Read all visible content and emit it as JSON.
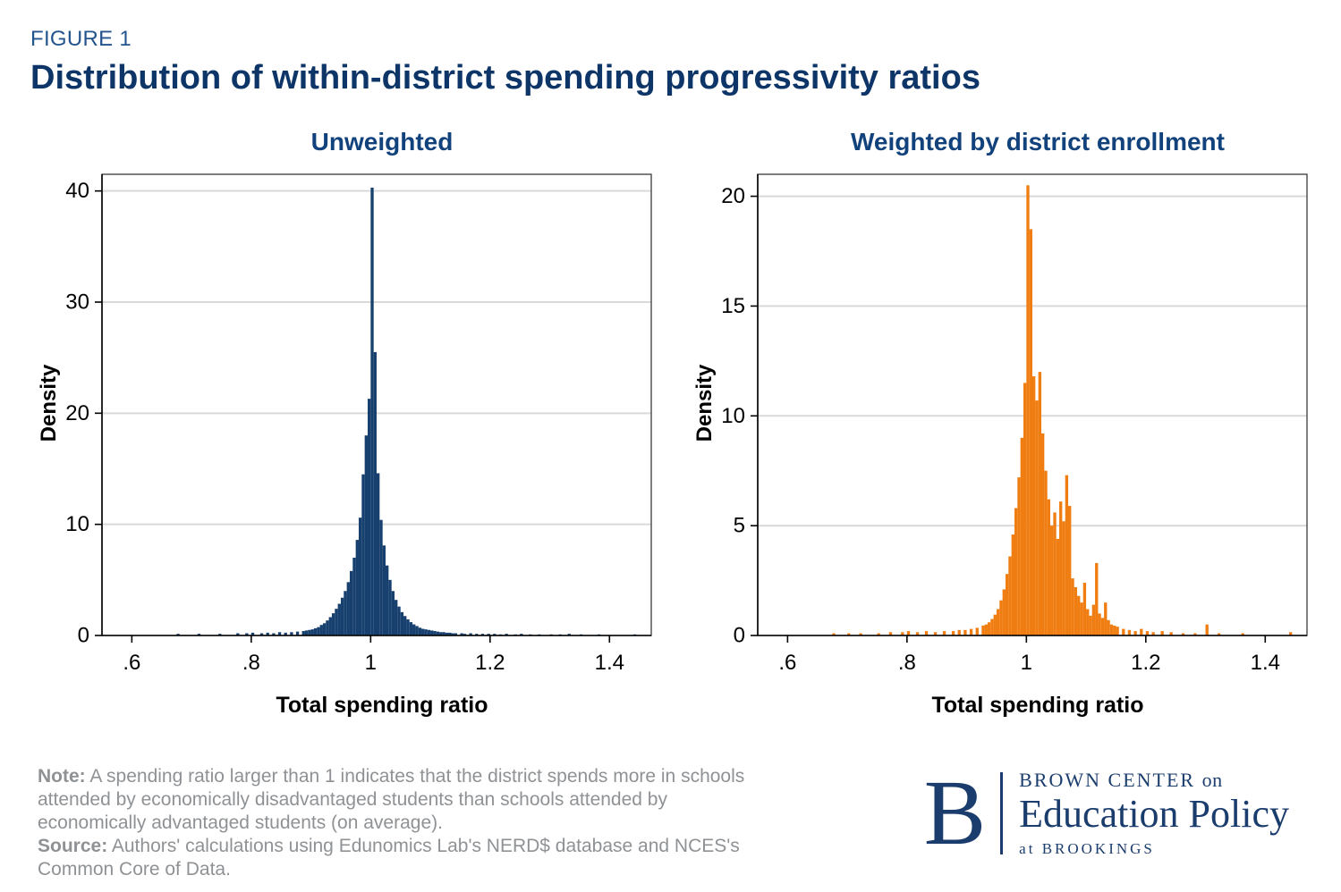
{
  "figure": {
    "label": "FIGURE 1",
    "title": "Distribution of within-district spending progressivity ratios"
  },
  "footer": {
    "note_label": "Note:",
    "note_text": "A spending ratio larger than 1 indicates that the district spends more in schools attended by economically disadvantaged students than schools attended by economically advantaged students (on average).",
    "source_label": "Source:",
    "source_text": "Authors' calculations using Edunomics Lab's NERD$ database and NCES's Common Core of Data."
  },
  "logo": {
    "letter": "B",
    "brown_center": "BROWN CENTER",
    "on": "on",
    "education_policy": "Education Policy",
    "at": "at",
    "brookings": "BROOKINGS"
  },
  "chart_data": [
    {
      "type": "bar",
      "subtype": "histogram",
      "title": "Unweighted",
      "xlabel": "Total spending ratio",
      "ylabel": "Density",
      "color": "#17406f",
      "grid": true,
      "legend": "none",
      "bin_width": 0.005,
      "xlim": [
        0.55,
        1.47
      ],
      "ylim": [
        0,
        41.5
      ],
      "xticks": [
        0.6,
        0.8,
        1.0,
        1.2,
        1.4
      ],
      "xtick_labels": [
        ".6",
        ".8",
        "1",
        "1.2",
        "1.4"
      ],
      "yticks": [
        0,
        10,
        20,
        30,
        40
      ],
      "bins": [
        [
          0.675,
          0.15
        ],
        [
          0.71,
          0.15
        ],
        [
          0.745,
          0.15
        ],
        [
          0.775,
          0.2
        ],
        [
          0.79,
          0.2
        ],
        [
          0.8,
          0.25
        ],
        [
          0.815,
          0.2
        ],
        [
          0.825,
          0.25
        ],
        [
          0.835,
          0.2
        ],
        [
          0.845,
          0.3
        ],
        [
          0.855,
          0.25
        ],
        [
          0.865,
          0.3
        ],
        [
          0.875,
          0.35
        ],
        [
          0.885,
          0.4
        ],
        [
          0.89,
          0.45
        ],
        [
          0.895,
          0.5
        ],
        [
          0.9,
          0.55
        ],
        [
          0.905,
          0.65
        ],
        [
          0.91,
          0.75
        ],
        [
          0.915,
          0.95
        ],
        [
          0.92,
          1.1
        ],
        [
          0.925,
          1.35
        ],
        [
          0.93,
          1.65
        ],
        [
          0.935,
          2.0
        ],
        [
          0.94,
          2.4
        ],
        [
          0.945,
          2.85
        ],
        [
          0.95,
          3.4
        ],
        [
          0.955,
          4.0
        ],
        [
          0.96,
          4.8
        ],
        [
          0.965,
          5.8
        ],
        [
          0.97,
          7.0
        ],
        [
          0.975,
          8.6
        ],
        [
          0.98,
          10.6
        ],
        [
          0.985,
          14.5
        ],
        [
          0.99,
          18.0
        ],
        [
          0.995,
          21.3
        ],
        [
          1.0,
          40.3
        ],
        [
          1.005,
          25.5
        ],
        [
          1.01,
          14.6
        ],
        [
          1.015,
          10.4
        ],
        [
          1.02,
          8.1
        ],
        [
          1.025,
          6.3
        ],
        [
          1.03,
          5.0
        ],
        [
          1.035,
          4.0
        ],
        [
          1.04,
          3.2
        ],
        [
          1.045,
          2.6
        ],
        [
          1.05,
          2.1
        ],
        [
          1.055,
          1.75
        ],
        [
          1.06,
          1.45
        ],
        [
          1.065,
          1.2
        ],
        [
          1.07,
          1.0
        ],
        [
          1.075,
          0.85
        ],
        [
          1.08,
          0.7
        ],
        [
          1.085,
          0.6
        ],
        [
          1.09,
          0.55
        ],
        [
          1.095,
          0.5
        ],
        [
          1.1,
          0.45
        ],
        [
          1.105,
          0.4
        ],
        [
          1.11,
          0.35
        ],
        [
          1.115,
          0.3
        ],
        [
          1.12,
          0.3
        ],
        [
          1.125,
          0.25
        ],
        [
          1.13,
          0.25
        ],
        [
          1.135,
          0.2
        ],
        [
          1.14,
          0.2
        ],
        [
          1.15,
          0.2
        ],
        [
          1.155,
          0.15
        ],
        [
          1.165,
          0.2
        ],
        [
          1.175,
          0.15
        ],
        [
          1.185,
          0.15
        ],
        [
          1.195,
          0.15
        ],
        [
          1.205,
          0.15
        ],
        [
          1.215,
          0.1
        ],
        [
          1.225,
          0.15
        ],
        [
          1.24,
          0.1
        ],
        [
          1.25,
          0.15
        ],
        [
          1.265,
          0.1
        ],
        [
          1.28,
          0.1
        ],
        [
          1.3,
          0.1
        ],
        [
          1.315,
          0.1
        ],
        [
          1.33,
          0.15
        ],
        [
          1.35,
          0.1
        ],
        [
          1.38,
          0.1
        ],
        [
          1.44,
          0.1
        ]
      ]
    },
    {
      "type": "bar",
      "subtype": "histogram",
      "title": "Weighted by district enrollment",
      "xlabel": "Total spending ratio",
      "ylabel": "Density",
      "color": "#f07d11",
      "grid": true,
      "legend": "none",
      "bin_width": 0.005,
      "xlim": [
        0.55,
        1.47
      ],
      "ylim": [
        0,
        21
      ],
      "xticks": [
        0.6,
        0.8,
        1.0,
        1.2,
        1.4
      ],
      "xtick_labels": [
        ".6",
        ".8",
        "1",
        "1.2",
        "1.4"
      ],
      "yticks": [
        0,
        5,
        10,
        15,
        20
      ],
      "bins": [
        [
          0.675,
          0.1
        ],
        [
          0.7,
          0.1
        ],
        [
          0.72,
          0.1
        ],
        [
          0.75,
          0.1
        ],
        [
          0.77,
          0.15
        ],
        [
          0.79,
          0.15
        ],
        [
          0.8,
          0.2
        ],
        [
          0.815,
          0.15
        ],
        [
          0.83,
          0.2
        ],
        [
          0.845,
          0.15
        ],
        [
          0.86,
          0.2
        ],
        [
          0.875,
          0.2
        ],
        [
          0.885,
          0.25
        ],
        [
          0.895,
          0.25
        ],
        [
          0.905,
          0.3
        ],
        [
          0.915,
          0.35
        ],
        [
          0.925,
          0.45
        ],
        [
          0.93,
          0.5
        ],
        [
          0.935,
          0.6
        ],
        [
          0.94,
          0.75
        ],
        [
          0.945,
          0.95
        ],
        [
          0.95,
          1.2
        ],
        [
          0.955,
          1.6
        ],
        [
          0.96,
          2.1
        ],
        [
          0.965,
          2.8
        ],
        [
          0.97,
          3.6
        ],
        [
          0.975,
          4.6
        ],
        [
          0.98,
          5.8
        ],
        [
          0.985,
          7.2
        ],
        [
          0.99,
          9.0
        ],
        [
          0.995,
          11.5
        ],
        [
          1.0,
          20.5
        ],
        [
          1.005,
          18.5
        ],
        [
          1.01,
          11.8
        ],
        [
          1.015,
          10.7
        ],
        [
          1.02,
          12.0
        ],
        [
          1.025,
          9.2
        ],
        [
          1.03,
          7.5
        ],
        [
          1.035,
          6.2
        ],
        [
          1.04,
          5.0
        ],
        [
          1.045,
          5.6
        ],
        [
          1.05,
          4.4
        ],
        [
          1.055,
          6.1
        ],
        [
          1.06,
          5.2
        ],
        [
          1.065,
          7.3
        ],
        [
          1.07,
          5.9
        ],
        [
          1.075,
          2.6
        ],
        [
          1.08,
          2.2
        ],
        [
          1.085,
          1.8
        ],
        [
          1.09,
          1.5
        ],
        [
          1.095,
          2.4
        ],
        [
          1.1,
          1.2
        ],
        [
          1.105,
          0.9
        ],
        [
          1.11,
          1.4
        ],
        [
          1.115,
          3.3
        ],
        [
          1.12,
          1.0
        ],
        [
          1.125,
          0.8
        ],
        [
          1.13,
          1.5
        ],
        [
          1.135,
          0.7
        ],
        [
          1.14,
          0.5
        ],
        [
          1.145,
          0.45
        ],
        [
          1.15,
          0.4
        ],
        [
          1.16,
          0.3
        ],
        [
          1.17,
          0.25
        ],
        [
          1.18,
          0.2
        ],
        [
          1.19,
          0.3
        ],
        [
          1.2,
          0.2
        ],
        [
          1.21,
          0.15
        ],
        [
          1.225,
          0.2
        ],
        [
          1.24,
          0.15
        ],
        [
          1.26,
          0.1
        ],
        [
          1.28,
          0.1
        ],
        [
          1.3,
          0.5
        ],
        [
          1.32,
          0.1
        ],
        [
          1.36,
          0.1
        ],
        [
          1.44,
          0.15
        ]
      ]
    }
  ]
}
